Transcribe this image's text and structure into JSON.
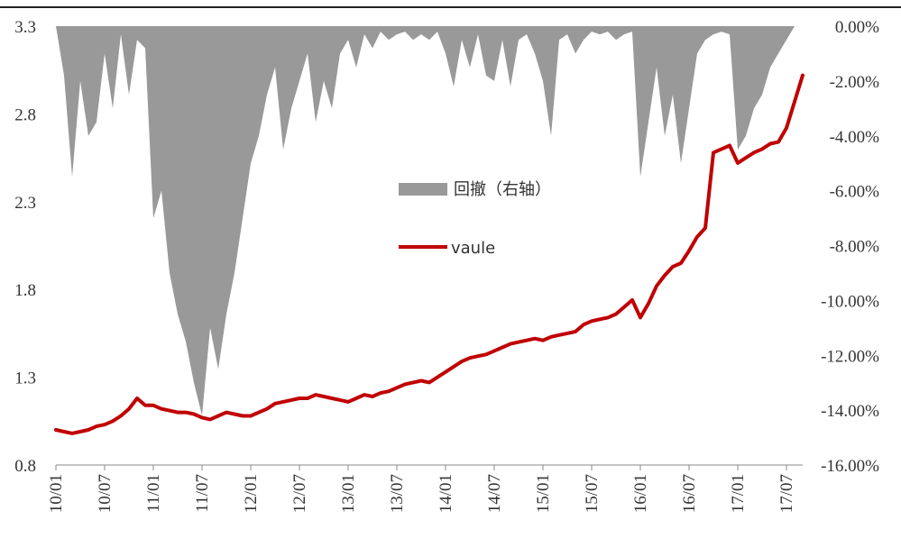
{
  "chart_data": {
    "type": "line",
    "title": "",
    "xlabel": "",
    "ylabel": "",
    "x_tick_labels": [
      "10/01",
      "10/07",
      "11/01",
      "11/07",
      "12/01",
      "12/07",
      "13/01",
      "13/07",
      "14/01",
      "14/07",
      "15/01",
      "15/07",
      "16/01",
      "16/07",
      "17/01",
      "17/07"
    ],
    "ylim": [
      0.8,
      3.3
    ],
    "y_ticks": [
      "3.3",
      "2.8",
      "2.3",
      "1.8",
      "1.3",
      "0.8"
    ],
    "y2lim": [
      -16,
      0
    ],
    "y2_ticks": [
      "0.00%",
      "-2.00%",
      "-4.00%",
      "-6.00%",
      "-8.00%",
      "-10.00%",
      "-12.00%",
      "-14.00%",
      "-16.00%"
    ],
    "grid": false,
    "legend_position": "center",
    "series": [
      {
        "name": "回撤（右轴）",
        "type": "area",
        "axis": "right",
        "color": "#999999",
        "points": [
          [
            "10/01",
            0
          ],
          [
            "10/02",
            -1.8
          ],
          [
            "10/03",
            -5.5
          ],
          [
            "10/04",
            -2.0
          ],
          [
            "10/05",
            -4.0
          ],
          [
            "10/06",
            -3.5
          ],
          [
            "10/07",
            -1.0
          ],
          [
            "10/08",
            -3.0
          ],
          [
            "10/09",
            -0.3
          ],
          [
            "10/10",
            -2.5
          ],
          [
            "10/11",
            -0.5
          ],
          [
            "10/12",
            -0.8
          ],
          [
            "11/01",
            -7.0
          ],
          [
            "11/02",
            -6.0
          ],
          [
            "11/03",
            -9.0
          ],
          [
            "11/04",
            -10.5
          ],
          [
            "11/05",
            -11.5
          ],
          [
            "11/06",
            -13.0
          ],
          [
            "11/07",
            -14.2
          ],
          [
            "11/08",
            -11.0
          ],
          [
            "11/09",
            -12.5
          ],
          [
            "11/10",
            -10.5
          ],
          [
            "11/11",
            -9.0
          ],
          [
            "11/12",
            -7.0
          ],
          [
            "12/01",
            -5.0
          ],
          [
            "12/02",
            -4.0
          ],
          [
            "12/03",
            -2.5
          ],
          [
            "12/04",
            -1.5
          ],
          [
            "12/05",
            -4.5
          ],
          [
            "12/06",
            -3.0
          ],
          [
            "12/07",
            -2.0
          ],
          [
            "12/08",
            -1.0
          ],
          [
            "12/09",
            -3.5
          ],
          [
            "12/10",
            -2.0
          ],
          [
            "12/11",
            -3.0
          ],
          [
            "12/12",
            -1.0
          ],
          [
            "13/01",
            -0.5
          ],
          [
            "13/02",
            -1.5
          ],
          [
            "13/03",
            -0.3
          ],
          [
            "13/04",
            -0.8
          ],
          [
            "13/05",
            -0.2
          ],
          [
            "13/06",
            -0.5
          ],
          [
            "13/07",
            -0.3
          ],
          [
            "13/08",
            -0.2
          ],
          [
            "13/09",
            -0.5
          ],
          [
            "13/10",
            -0.3
          ],
          [
            "13/11",
            -0.5
          ],
          [
            "13/12",
            -0.2
          ],
          [
            "14/01",
            -1.0
          ],
          [
            "14/02",
            -2.2
          ],
          [
            "14/03",
            -0.5
          ],
          [
            "14/04",
            -1.5
          ],
          [
            "14/05",
            -0.3
          ],
          [
            "14/06",
            -1.8
          ],
          [
            "14/07",
            -2.0
          ],
          [
            "14/08",
            -0.5
          ],
          [
            "14/09",
            -2.2
          ],
          [
            "14/10",
            -0.5
          ],
          [
            "14/11",
            -0.3
          ],
          [
            "14/12",
            -1.0
          ],
          [
            "15/01",
            -2.0
          ],
          [
            "15/02",
            -4.0
          ],
          [
            "15/03",
            -0.5
          ],
          [
            "15/04",
            -0.3
          ],
          [
            "15/05",
            -1.0
          ],
          [
            "15/06",
            -0.5
          ],
          [
            "15/07",
            -0.2
          ],
          [
            "15/08",
            -0.3
          ],
          [
            "15/09",
            -0.2
          ],
          [
            "15/10",
            -0.5
          ],
          [
            "15/11",
            -0.3
          ],
          [
            "15/12",
            -0.2
          ],
          [
            "16/01",
            -5.5
          ],
          [
            "16/02",
            -3.5
          ],
          [
            "16/03",
            -1.5
          ],
          [
            "16/04",
            -4.0
          ],
          [
            "16/05",
            -2.5
          ],
          [
            "16/06",
            -5.0
          ],
          [
            "16/07",
            -3.0
          ],
          [
            "16/08",
            -1.0
          ],
          [
            "16/09",
            -0.5
          ],
          [
            "16/10",
            -0.3
          ],
          [
            "16/11",
            -0.2
          ],
          [
            "16/12",
            -0.3
          ],
          [
            "17/01",
            -4.5
          ],
          [
            "17/02",
            -4.0
          ],
          [
            "17/03",
            -3.0
          ],
          [
            "17/04",
            -2.5
          ],
          [
            "17/05",
            -1.5
          ],
          [
            "17/06",
            -1.0
          ],
          [
            "17/07",
            -0.5
          ],
          [
            "17/08",
            0.0
          ]
        ]
      },
      {
        "name": "vaule",
        "type": "line",
        "axis": "left",
        "color": "#c00000",
        "points": [
          [
            "10/01",
            1.0
          ],
          [
            "10/02",
            0.99
          ],
          [
            "10/03",
            0.98
          ],
          [
            "10/04",
            0.99
          ],
          [
            "10/05",
            1.0
          ],
          [
            "10/06",
            1.02
          ],
          [
            "10/07",
            1.03
          ],
          [
            "10/08",
            1.05
          ],
          [
            "10/09",
            1.08
          ],
          [
            "10/10",
            1.12
          ],
          [
            "10/11",
            1.18
          ],
          [
            "10/12",
            1.14
          ],
          [
            "11/01",
            1.14
          ],
          [
            "11/02",
            1.12
          ],
          [
            "11/03",
            1.11
          ],
          [
            "11/04",
            1.1
          ],
          [
            "11/05",
            1.1
          ],
          [
            "11/06",
            1.09
          ],
          [
            "11/07",
            1.07
          ],
          [
            "11/08",
            1.06
          ],
          [
            "11/09",
            1.08
          ],
          [
            "11/10",
            1.1
          ],
          [
            "11/11",
            1.09
          ],
          [
            "11/12",
            1.08
          ],
          [
            "12/01",
            1.08
          ],
          [
            "12/02",
            1.1
          ],
          [
            "12/03",
            1.12
          ],
          [
            "12/04",
            1.15
          ],
          [
            "12/05",
            1.16
          ],
          [
            "12/06",
            1.17
          ],
          [
            "12/07",
            1.18
          ],
          [
            "12/08",
            1.18
          ],
          [
            "12/09",
            1.2
          ],
          [
            "12/10",
            1.19
          ],
          [
            "12/11",
            1.18
          ],
          [
            "12/12",
            1.17
          ],
          [
            "13/01",
            1.16
          ],
          [
            "13/02",
            1.18
          ],
          [
            "13/03",
            1.2
          ],
          [
            "13/04",
            1.19
          ],
          [
            "13/05",
            1.21
          ],
          [
            "13/06",
            1.22
          ],
          [
            "13/07",
            1.24
          ],
          [
            "13/08",
            1.26
          ],
          [
            "13/09",
            1.27
          ],
          [
            "13/10",
            1.28
          ],
          [
            "13/11",
            1.27
          ],
          [
            "13/12",
            1.3
          ],
          [
            "14/01",
            1.33
          ],
          [
            "14/02",
            1.36
          ],
          [
            "14/03",
            1.39
          ],
          [
            "14/04",
            1.41
          ],
          [
            "14/05",
            1.42
          ],
          [
            "14/06",
            1.43
          ],
          [
            "14/07",
            1.45
          ],
          [
            "14/08",
            1.47
          ],
          [
            "14/09",
            1.49
          ],
          [
            "14/10",
            1.5
          ],
          [
            "14/11",
            1.51
          ],
          [
            "14/12",
            1.52
          ],
          [
            "15/01",
            1.51
          ],
          [
            "15/02",
            1.53
          ],
          [
            "15/03",
            1.54
          ],
          [
            "15/04",
            1.55
          ],
          [
            "15/05",
            1.56
          ],
          [
            "15/06",
            1.6
          ],
          [
            "15/07",
            1.62
          ],
          [
            "15/08",
            1.63
          ],
          [
            "15/09",
            1.64
          ],
          [
            "15/10",
            1.66
          ],
          [
            "15/11",
            1.7
          ],
          [
            "15/12",
            1.74
          ],
          [
            "16/01",
            1.64
          ],
          [
            "16/02",
            1.72
          ],
          [
            "16/03",
            1.82
          ],
          [
            "16/04",
            1.88
          ],
          [
            "16/05",
            1.93
          ],
          [
            "16/06",
            1.95
          ],
          [
            "16/07",
            2.02
          ],
          [
            "16/08",
            2.1
          ],
          [
            "16/09",
            2.15
          ],
          [
            "16/10",
            2.58
          ],
          [
            "16/11",
            2.6
          ],
          [
            "16/12",
            2.62
          ],
          [
            "17/01",
            2.52
          ],
          [
            "17/02",
            2.55
          ],
          [
            "17/03",
            2.58
          ],
          [
            "17/04",
            2.6
          ],
          [
            "17/05",
            2.63
          ],
          [
            "17/06",
            2.64
          ],
          [
            "17/07",
            2.72
          ],
          [
            "17/08",
            2.87
          ],
          [
            "17/09",
            3.02
          ]
        ]
      }
    ]
  }
}
